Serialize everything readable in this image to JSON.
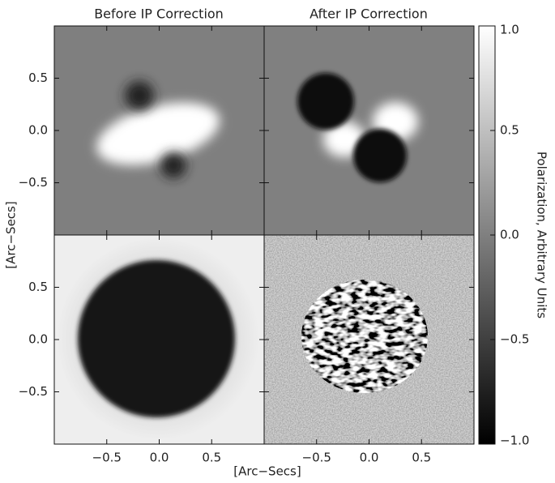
{
  "chart_data": {
    "type": "image-grid",
    "titles": [
      "Before IP Correction",
      "After IP Correction"
    ],
    "xlabel": "[Arc−Secs]",
    "ylabel": "[Arc−Secs]",
    "xlim": [
      -1,
      1
    ],
    "ylim": [
      -1,
      1
    ],
    "xticks": [
      {
        "value": -0.5,
        "label": "−0.5"
      },
      {
        "value": 0,
        "label": "0.0"
      },
      0.5
    ],
    "yticks": [
      {
        "value": -0.5,
        "label": "−0.5"
      },
      {
        "value": 0,
        "label": "0.0"
      },
      0.5
    ],
    "colorbar": {
      "label": "Polarization, Arbitrary Units",
      "lim": [
        -1,
        1
      ],
      "ticks": [
        {
          "value": -1,
          "label": "−1.0"
        },
        {
          "value": -0.5,
          "label": "−0.5"
        },
        {
          "value": 0,
          "label": "0.0"
        },
        0.5,
        {
          "value": 1,
          "label": "1.0"
        }
      ]
    }
  }
}
